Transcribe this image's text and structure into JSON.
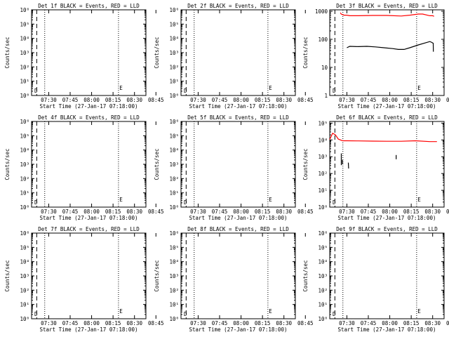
{
  "chart_data": [
    {
      "title": "Det 1f BLACK = Events, RED = LLD",
      "type": "line",
      "ylabel": "Counts/sec",
      "xlabel": "Start Time (27-Jan-17 07:18:00)",
      "scale": "log",
      "yticks": [
        "10⁰",
        "10¹",
        "10²",
        "10³",
        "10⁴",
        "10⁵",
        "10⁶"
      ],
      "ylim": [
        0,
        6
      ],
      "xticks": [
        "07:30",
        "07:45",
        "08:00",
        "08:15",
        "08:30",
        "08:45"
      ],
      "markers": [
        "D",
        "E"
      ],
      "series": []
    },
    {
      "title": "Det 2f BLACK = Events, RED = LLD",
      "type": "line",
      "ylabel": "Counts/sec",
      "xlabel": "Start Time (27-Jan-17 07:18:00)",
      "scale": "log",
      "yticks": [
        "10⁰",
        "10¹",
        "10²",
        "10³",
        "10⁴",
        "10⁵",
        "10⁶"
      ],
      "ylim": [
        0,
        6
      ],
      "xticks": [
        "07:30",
        "07:45",
        "08:00",
        "08:15",
        "08:30",
        "08:45"
      ],
      "markers": [
        "D",
        "E"
      ],
      "series": []
    },
    {
      "title": "Det 3f BLACK = Events, RED = LLD",
      "type": "line",
      "ylabel": "Counts/sec",
      "xlabel": "Start Time (27-Jan-17 07:18:00)",
      "scale": "log",
      "yticks": [
        "1",
        "10",
        "100",
        "1000"
      ],
      "ylim": [
        0,
        3.05
      ],
      "xticks": [
        "07:30",
        "07:45",
        "08:00",
        "08:15",
        "08:30",
        "08:45"
      ],
      "markers": [
        "D",
        "E"
      ],
      "series": [
        {
          "color": "#ff0000",
          "x": [
            7.44,
            8,
            10,
            12,
            14,
            20,
            30,
            40,
            50,
            56,
            62,
            65,
            70,
            72,
            73
          ],
          "y": [
            2.95,
            2.9,
            2.86,
            2.86,
            2.84,
            2.84,
            2.85,
            2.85,
            2.83,
            2.86,
            2.9,
            2.9,
            2.84,
            2.84,
            2.82
          ]
        },
        {
          "color": "#000000",
          "x": [
            12,
            14,
            20,
            26,
            32,
            38,
            44,
            48,
            52,
            56,
            62,
            66,
            70,
            71,
            72.4,
            72.5
          ],
          "y": [
            1.7,
            1.75,
            1.74,
            1.75,
            1.73,
            1.7,
            1.67,
            1.64,
            1.64,
            1.7,
            1.8,
            1.86,
            1.92,
            1.9,
            1.86,
            1.56
          ]
        }
      ]
    },
    {
      "title": "Det 4f BLACK = Events, RED = LLD",
      "type": "line",
      "ylabel": "Counts/sec",
      "xlabel": "Start Time (27-Jan-17 07:18:00)",
      "scale": "log",
      "yticks": [
        "10⁰",
        "10¹",
        "10²",
        "10³",
        "10⁴",
        "10⁵",
        "10⁶"
      ],
      "ylim": [
        0,
        6
      ],
      "xticks": [
        "07:30",
        "07:45",
        "08:00",
        "08:15",
        "08:30",
        "08:45"
      ],
      "markers": [
        "D",
        "E"
      ],
      "series": []
    },
    {
      "title": "Det 5f BLACK = Events, RED = LLD",
      "type": "line",
      "ylabel": "Counts/sec",
      "xlabel": "Start Time (27-Jan-17 07:18:00)",
      "scale": "log",
      "yticks": [
        "10⁰",
        "10¹",
        "10²",
        "10³",
        "10⁴",
        "10⁵",
        "10⁶"
      ],
      "ylim": [
        0,
        6
      ],
      "xticks": [
        "07:30",
        "07:45",
        "08:00",
        "08:15",
        "08:30",
        "08:45"
      ],
      "markers": [
        "D",
        "E"
      ],
      "series": []
    },
    {
      "title": "Det 6f BLACK = Events, RED = LLD",
      "type": "line",
      "ylabel": "Counts/sec",
      "xlabel": "Start Time (27-Jan-17 07:18:00)",
      "scale": "log",
      "yticks": [
        "10⁰",
        "10¹",
        "10²",
        "10³",
        "10⁴",
        "10⁵"
      ],
      "ylim": [
        0,
        5.1
      ],
      "xticks": [
        "07:30",
        "07:45",
        "08:00",
        "08:15",
        "08:30",
        "08:45"
      ],
      "markers": [
        "D",
        "E"
      ],
      "series": [
        {
          "color": "#ff0000",
          "x": [
            0,
            2,
            4,
            6,
            9,
            12,
            20,
            30,
            40,
            50,
            60,
            70,
            75
          ],
          "y": [
            4.02,
            4.4,
            4.3,
            4.05,
            3.95,
            3.95,
            3.94,
            3.93,
            3.92,
            3.92,
            3.95,
            3.9,
            3.9
          ]
        },
        {
          "color": "#000000",
          "x": [
            8.1,
            8.1
          ],
          "y": [
            3.2,
            2.5
          ]
        },
        {
          "color": "#000000",
          "x": [
            8.9,
            9.0
          ],
          "y": [
            2.8,
            2.55
          ]
        },
        {
          "color": "#000000",
          "x": [
            13.0,
            13.2
          ],
          "y": [
            2.65,
            2.3
          ]
        },
        {
          "color": "#000000",
          "x": [
            46.5,
            46.5
          ],
          "y": [
            3.1,
            2.85
          ]
        }
      ]
    },
    {
      "title": "Det 7f BLACK = Events, RED = LLD",
      "type": "line",
      "ylabel": "Counts/sec",
      "xlabel": "Start Time (27-Jan-17 07:18:00)",
      "scale": "log",
      "yticks": [
        "10⁰",
        "10¹",
        "10²",
        "10³",
        "10⁴",
        "10⁵",
        "10⁶"
      ],
      "ylim": [
        0,
        6
      ],
      "xticks": [
        "07:30",
        "07:45",
        "08:00",
        "08:15",
        "08:30",
        "08:45"
      ],
      "markers": [
        "D",
        "E"
      ],
      "series": []
    },
    {
      "title": "Det 8f BLACK = Events, RED = LLD",
      "type": "line",
      "ylabel": "Counts/sec",
      "xlabel": "Start Time (27-Jan-17 07:18:00)",
      "scale": "log",
      "yticks": [
        "10⁰",
        "10¹",
        "10²",
        "10³",
        "10⁴",
        "10⁵",
        "10⁶"
      ],
      "ylim": [
        0,
        6
      ],
      "xticks": [
        "07:30",
        "07:45",
        "08:00",
        "08:15",
        "08:30",
        "08:45"
      ],
      "markers": [
        "D",
        "E"
      ],
      "series": []
    },
    {
      "title": "Det 9f BLACK = Events, RED = LLD",
      "type": "line",
      "ylabel": "Counts/sec",
      "xlabel": "Start Time (27-Jan-17 07:18:00)",
      "scale": "log",
      "yticks": [
        "10⁰",
        "10¹",
        "10²",
        "10³",
        "10⁴",
        "10⁵",
        "10⁶"
      ],
      "ylim": [
        0,
        6
      ],
      "xticks": [
        "07:30",
        "07:45",
        "08:00",
        "08:15",
        "08:30",
        "08:45"
      ],
      "markers": [
        "D",
        "E"
      ],
      "series": []
    }
  ]
}
